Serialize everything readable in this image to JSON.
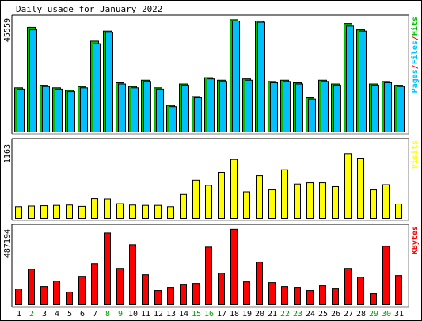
{
  "chart_data": [
    {
      "type": "bar",
      "title": "Daily usage for January 2022",
      "ymax_label": "45559",
      "ylim": [
        0,
        45559
      ],
      "categories": [
        "1",
        "2",
        "3",
        "4",
        "5",
        "6",
        "7",
        "8",
        "9",
        "10",
        "11",
        "12",
        "13",
        "14",
        "15",
        "16",
        "17",
        "18",
        "19",
        "20",
        "21",
        "22",
        "23",
        "24",
        "25",
        "26",
        "27",
        "28",
        "29",
        "30",
        "31"
      ],
      "weekend_days": [
        "2",
        "8",
        "9",
        "15",
        "16",
        "22",
        "23",
        "29",
        "30"
      ],
      "legend": [
        {
          "text": "Pages",
          "color": "#00c0ff"
        },
        {
          "text": "/",
          "color": "#ff0000"
        },
        {
          "text": "Files",
          "color": "#00c0ff"
        },
        {
          "text": "/",
          "color": "#ff0000"
        },
        {
          "text": "Hits",
          "color": "#00c000"
        }
      ],
      "series": [
        {
          "name": "Hits",
          "color": "#00c000",
          "values": [
            17500,
            41500,
            18500,
            17500,
            16500,
            18000,
            36000,
            40000,
            19500,
            18000,
            20500,
            17500,
            10500,
            19000,
            14000,
            21500,
            20500,
            44500,
            21000,
            44000,
            20000,
            20500,
            19500,
            13500,
            20500,
            19000,
            43000,
            40500,
            19000,
            20000,
            18500
          ]
        },
        {
          "name": "Files",
          "color": "#00c0ff",
          "values": [
            17000,
            40500,
            18000,
            17000,
            16000,
            17500,
            35000,
            39500,
            19000,
            17500,
            20000,
            17000,
            10000,
            18500,
            13500,
            21000,
            20000,
            44000,
            20500,
            43500,
            19500,
            20000,
            19000,
            13000,
            20000,
            18500,
            42000,
            40000,
            18500,
            19500,
            18000
          ]
        }
      ]
    },
    {
      "type": "bar",
      "ymax_label": "1163",
      "ylim": [
        0,
        1163
      ],
      "legend": [
        {
          "text": "Visits",
          "color": "#ffff00"
        }
      ],
      "series": [
        {
          "name": "Visits",
          "color": "#ffff00",
          "values": [
            180,
            190,
            195,
            200,
            205,
            185,
            305,
            300,
            225,
            205,
            200,
            200,
            180,
            370,
            590,
            510,
            710,
            910,
            410,
            660,
            440,
            750,
            530,
            550,
            550,
            490,
            1000,
            930,
            440,
            520,
            220
          ]
        }
      ]
    },
    {
      "type": "bar",
      "ymax_label": "487194",
      "ylim": [
        0,
        487194
      ],
      "legend": [
        {
          "text": "KBytes",
          "color": "#ff0000"
        }
      ],
      "series": [
        {
          "name": "KBytes",
          "color": "#ff0000",
          "values": [
            100000,
            225000,
            115000,
            150000,
            80000,
            180000,
            260000,
            455000,
            230000,
            380000,
            190000,
            90000,
            110000,
            130000,
            135000,
            365000,
            200000,
            478000,
            145000,
            270000,
            140000,
            115000,
            110000,
            90000,
            120000,
            105000,
            230000,
            175000,
            70000,
            370000,
            185000
          ]
        }
      ]
    }
  ]
}
